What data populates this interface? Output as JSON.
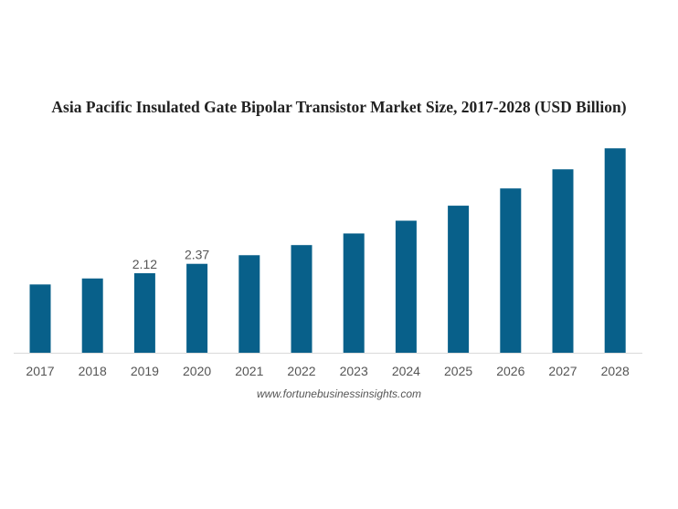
{
  "chart_data": {
    "type": "bar",
    "title": "Asia Pacific Insulated Gate Bipolar Transistor Market Size, 2017-2028 (USD Billion)",
    "xlabel": "",
    "ylabel": "",
    "categories": [
      "2017",
      "2018",
      "2019",
      "2020",
      "2021",
      "2022",
      "2023",
      "2024",
      "2025",
      "2026",
      "2027",
      "2028"
    ],
    "values": [
      1.82,
      1.98,
      2.12,
      2.37,
      2.6,
      2.87,
      3.18,
      3.52,
      3.92,
      4.38,
      4.89,
      5.45
    ],
    "data_labels": {
      "2019": "2.12",
      "2020": "2.37"
    },
    "ylim": [
      0,
      5.5
    ],
    "grid": false,
    "bar_color": "#08608a",
    "source": "www.fortunebusinessinsights.com"
  }
}
